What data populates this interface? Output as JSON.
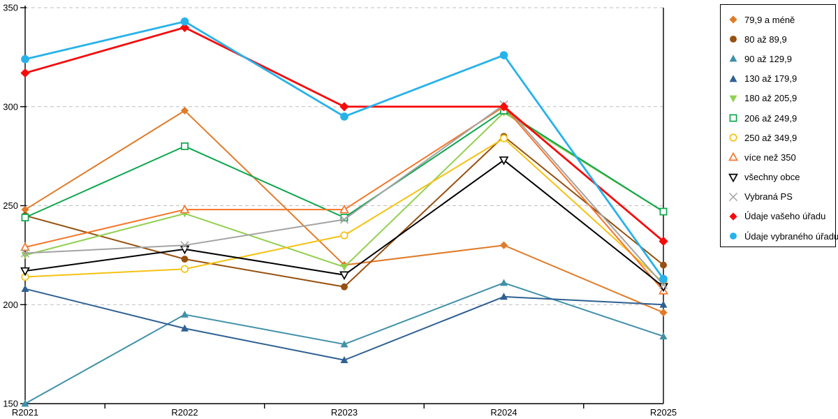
{
  "chart_data": {
    "type": "line",
    "title": "",
    "xlabel": "",
    "ylabel": "",
    "categories": [
      "R2021",
      "R2022",
      "R2023",
      "R2024",
      "R2025"
    ],
    "ylim": [
      150,
      350
    ],
    "yticks": [
      150,
      200,
      250,
      300,
      350
    ],
    "grid": "horizontal-dashed",
    "gridline_color": "#bfbfbf",
    "axis_color": "#000000",
    "legend_position": "right-box",
    "series": [
      {
        "name": "79,9 a méně",
        "color": "#e07b28",
        "marker": "diamond-filled",
        "emphasis": false,
        "values": [
          248,
          298,
          220,
          230,
          196
        ]
      },
      {
        "name": "80 až 89,9",
        "color": "#96500f",
        "marker": "circle-filled",
        "emphasis": false,
        "values": [
          245,
          223,
          209,
          285,
          220
        ]
      },
      {
        "name": "90 až 129,9",
        "color": "#4090a8",
        "marker": "triangle-up-filled",
        "emphasis": false,
        "values": [
          150,
          195,
          180,
          211,
          184
        ]
      },
      {
        "name": "130 až 179,9",
        "color": "#2e6093",
        "marker": "triangle-up-filled",
        "emphasis": false,
        "values": [
          208,
          188,
          172,
          204,
          200
        ]
      },
      {
        "name": "180 až 205,9",
        "color": "#92d050",
        "marker": "triangle-down-filled",
        "emphasis": false,
        "values": [
          225,
          246,
          219,
          297,
          247
        ]
      },
      {
        "name": "206 až 249,9",
        "color": "#0da64c",
        "marker": "square-open",
        "emphasis": false,
        "values": [
          244,
          280,
          244,
          298,
          247
        ]
      },
      {
        "name": "250 až 349,9",
        "color": "#f5c211",
        "marker": "circle-open",
        "emphasis": false,
        "values": [
          214,
          218,
          235,
          284,
          211
        ]
      },
      {
        "name": "více než 350",
        "color": "#f5762a",
        "marker": "triangle-up-open",
        "emphasis": false,
        "values": [
          229,
          248,
          248,
          300,
          207
        ]
      },
      {
        "name": "všechny obce",
        "color": "#000000",
        "marker": "triangle-down-open",
        "emphasis": false,
        "values": [
          217,
          228,
          215,
          273,
          209
        ]
      },
      {
        "name": "Vybraná PS",
        "color": "#a3a3a3",
        "marker": "x",
        "emphasis": false,
        "values": [
          226,
          230,
          243,
          301,
          210
        ]
      },
      {
        "name": "Údaje vašeho úřadu",
        "color": "#f70a0a",
        "marker": "diamond-filled",
        "emphasis": true,
        "values": [
          317,
          340,
          300,
          300,
          232
        ]
      },
      {
        "name": "Údaje vybraného úřadu",
        "color": "#27b2ea",
        "marker": "circle-filled",
        "emphasis": true,
        "values": [
          324,
          343,
          295,
          326,
          213
        ]
      }
    ]
  }
}
